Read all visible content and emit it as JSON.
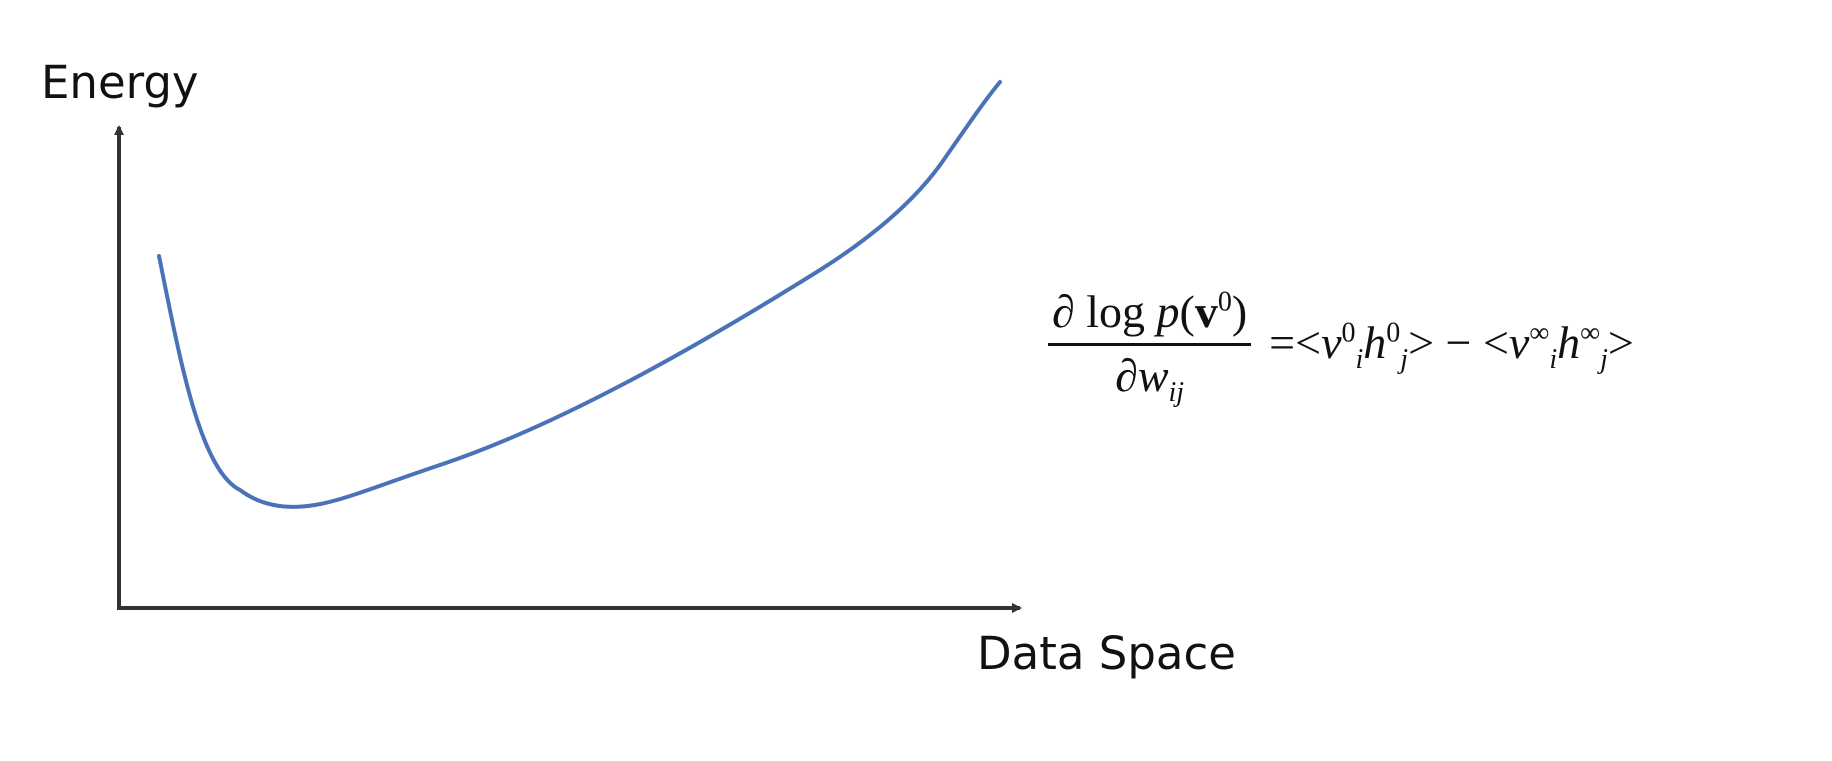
{
  "colors": {
    "axis": "#333333",
    "curve": "#4a72b8",
    "text": "#111111"
  },
  "axes": {
    "y_label": "Energy",
    "x_label": "Data Space"
  },
  "equation": {
    "partial_1": "∂",
    "log": "log",
    "p": "p",
    "open_paren": "(",
    "v": "v",
    "v_sup": "0",
    "close_paren": ")",
    "partial_2": "∂",
    "w": "w",
    "w_sub": "ij",
    "equals": "=",
    "lt1": "<",
    "v1": "v",
    "v1_sup": "0",
    "v1_sub": "i",
    "h1": "h",
    "h1_sup": "0",
    "h1_sub": "j",
    "gt1": ">",
    "minus": "−",
    "lt2": "<",
    "v2": "v",
    "v2_sup": "∞",
    "v2_sub": "i",
    "h2": "h",
    "h2_sup": "∞",
    "h2_sub": "j",
    "gt2": ">"
  }
}
